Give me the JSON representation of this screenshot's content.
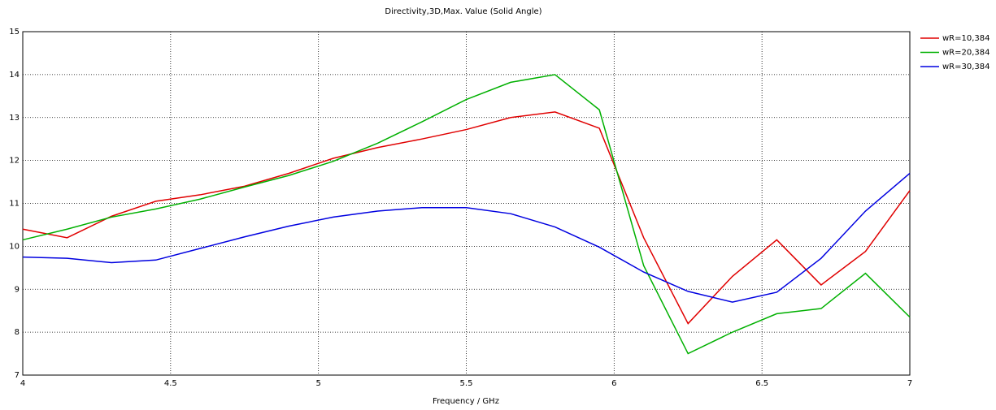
{
  "chart_data": {
    "type": "line",
    "title": "Directivity,3D,Max. Value (Solid Angle)",
    "x_label": "Frequency / GHz",
    "x": [
      4,
      4.15,
      4.3,
      4.45,
      4.6,
      4.75,
      4.9,
      5.05,
      5.2,
      5.35,
      5.5,
      5.65,
      5.8,
      5.95,
      6.1,
      6.25,
      6.4,
      6.55,
      6.7,
      6.85,
      7
    ],
    "series": [
      {
        "name": "wR=10,384",
        "color": "#e00000",
        "values": [
          10.4,
          10.2,
          10.7,
          11.05,
          11.2,
          11.4,
          11.7,
          12.05,
          12.3,
          12.5,
          12.72,
          13.0,
          13.13,
          12.75,
          10.2,
          8.2,
          9.3,
          10.15,
          9.1,
          9.88,
          11.3
        ]
      },
      {
        "name": "wR=20,384",
        "color": "#00b000",
        "values": [
          10.15,
          10.4,
          10.68,
          10.87,
          11.1,
          11.38,
          11.65,
          11.98,
          12.4,
          12.9,
          13.42,
          13.82,
          14.0,
          13.18,
          9.55,
          7.5,
          8.0,
          8.43,
          8.55,
          9.37,
          8.35
        ]
      },
      {
        "name": "wR=30,384",
        "color": "#0000e0",
        "values": [
          9.75,
          9.72,
          9.62,
          9.68,
          9.95,
          10.22,
          10.47,
          10.68,
          10.82,
          10.9,
          10.9,
          10.76,
          10.45,
          9.98,
          9.4,
          8.95,
          8.7,
          8.93,
          9.72,
          10.82,
          11.7
        ]
      }
    ],
    "xlim": [
      4,
      7
    ],
    "xticks": [
      4,
      4.5,
      5,
      5.5,
      6,
      6.5,
      7
    ],
    "ylim": [
      7,
      15
    ],
    "yticks": [
      7,
      8,
      9,
      10,
      11,
      12,
      13,
      14,
      15
    ],
    "grid": true,
    "legend": "top-right"
  }
}
